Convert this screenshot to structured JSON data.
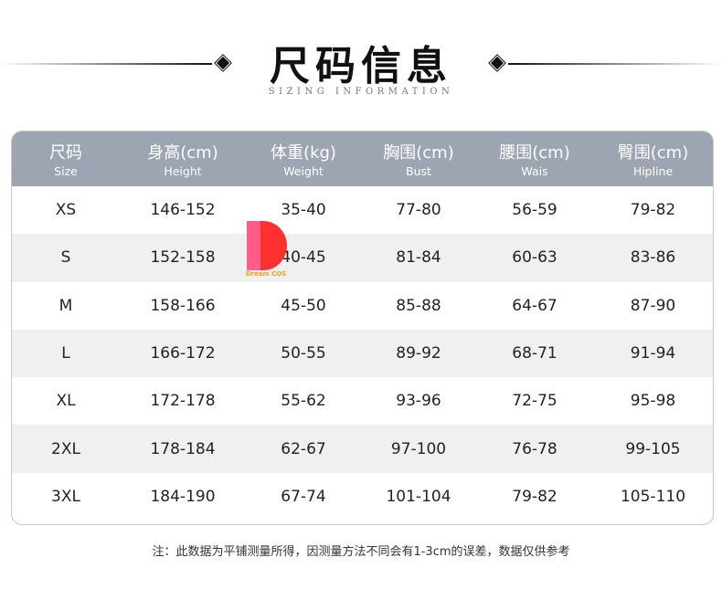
{
  "title": "尺码信息",
  "subtitle": "SIZING INFORMATION",
  "headers": [
    {
      "zh": "尺码",
      "en": "Size"
    },
    {
      "zh": "身高(cm)",
      "en": "Height"
    },
    {
      "zh": "体重(kg)",
      "en": "Weight"
    },
    {
      "zh": "胸围(cm)",
      "en": "Bust"
    },
    {
      "zh": "腰围(cm)",
      "en": "Wais"
    },
    {
      "zh": "臀围(cm)",
      "en": "Hipline"
    }
  ],
  "rows": [
    [
      "XS",
      "146-152",
      "35-40",
      "77-80",
      "56-59",
      "79-82"
    ],
    [
      "S",
      "152-158",
      "40-45",
      "81-84",
      "60-63",
      "83-86"
    ],
    [
      "M",
      "158-166",
      "45-50",
      "85-88",
      "64-67",
      "87-90"
    ],
    [
      "L",
      "166-172",
      "50-55",
      "89-92",
      "68-71",
      "91-94"
    ],
    [
      "XL",
      "172-178",
      "55-62",
      "93-96",
      "72-75",
      "95-98"
    ],
    [
      "2XL",
      "178-184",
      "62-67",
      "97-100",
      "76-78",
      "99-105"
    ],
    [
      "3XL",
      "184-190",
      "67-74",
      "101-104",
      "79-82",
      "105-110"
    ]
  ],
  "watermark": "Dream COS",
  "note": "注：此数据为平铺测量所得，因测量方法不同会有1-3cm的误差，数据仅供参考",
  "colors": {
    "header_bg": "#9ea5b2",
    "stripe": "#f0f0f0"
  }
}
